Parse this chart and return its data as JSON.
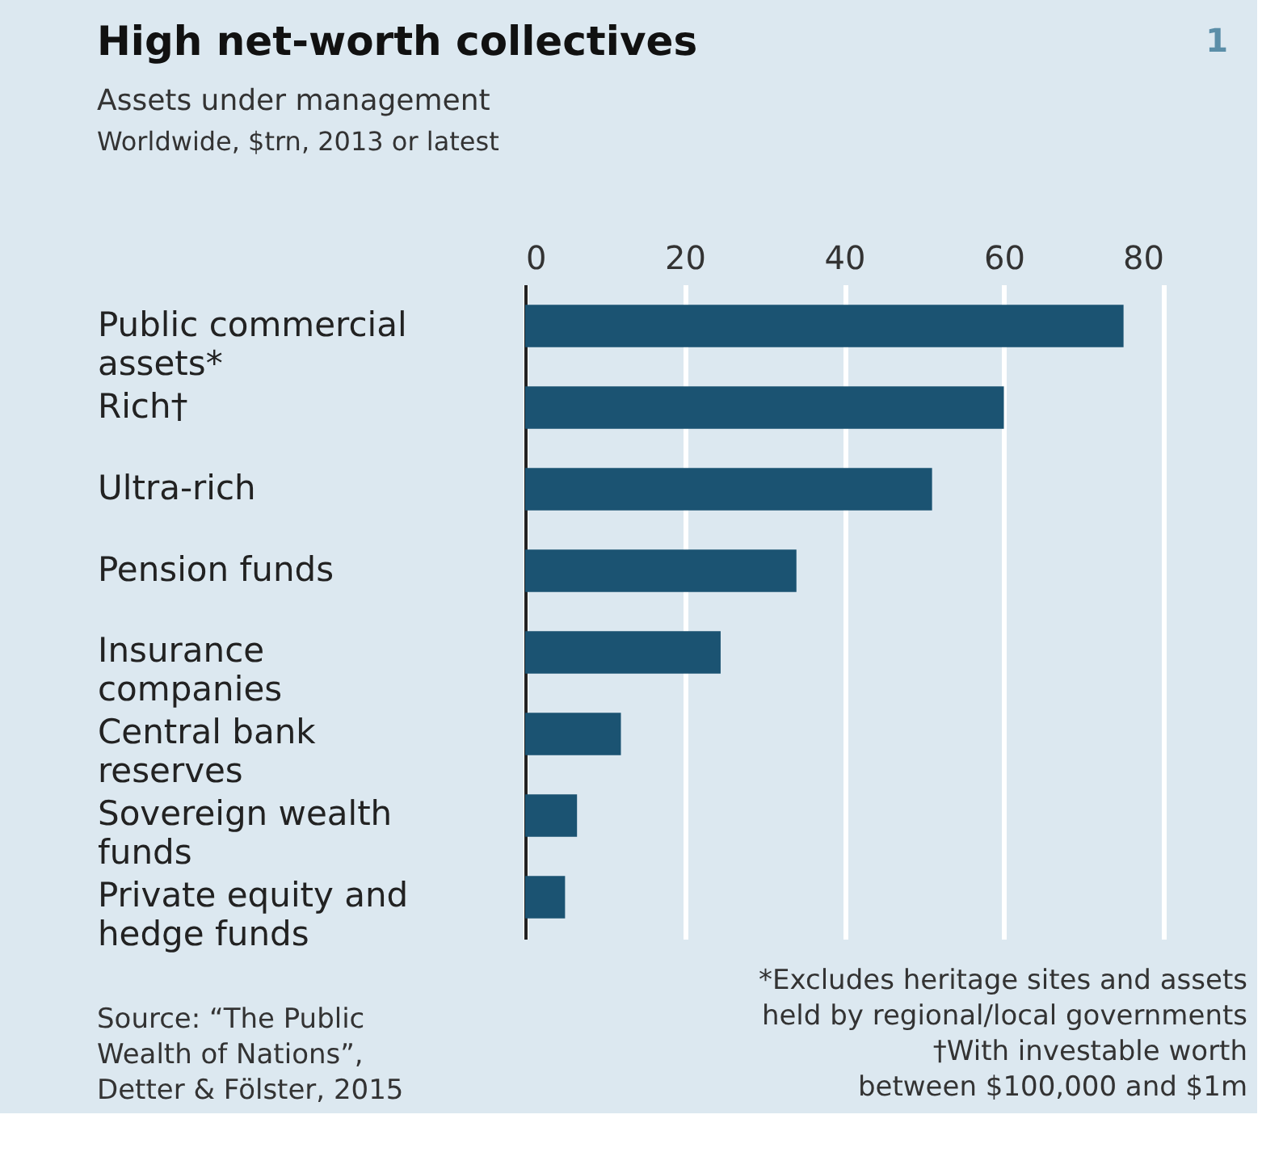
{
  "chart_data": {
    "type": "bar",
    "orientation": "horizontal",
    "title": "High net-worth collectives",
    "subtitle": "Assets under management",
    "categories": [
      "Public commercial assets*",
      "Rich†",
      "Ultra-rich",
      "Pension funds",
      "Insurance companies",
      "Central bank reserves",
      "Sovereign wealth funds",
      "Private equity and hedge funds"
    ],
    "values": [
      75,
      60,
      51,
      34,
      24.5,
      12,
      6.5,
      5
    ],
    "color": "#1b5372",
    "xlim": [
      0,
      80
    ],
    "xticks": [
      0,
      20,
      40,
      60,
      80
    ],
    "grid": "x",
    "annotations": [
      "1",
      "Worldwide, $trn, 2013 or latest",
      "Source: “The Public Wealth of Nations”, Detter & Fölster, 2015",
      "*Excludes heritage sites and assets held by regional/local governments",
      "†With investable worth between $100,000 and $1m"
    ]
  }
}
